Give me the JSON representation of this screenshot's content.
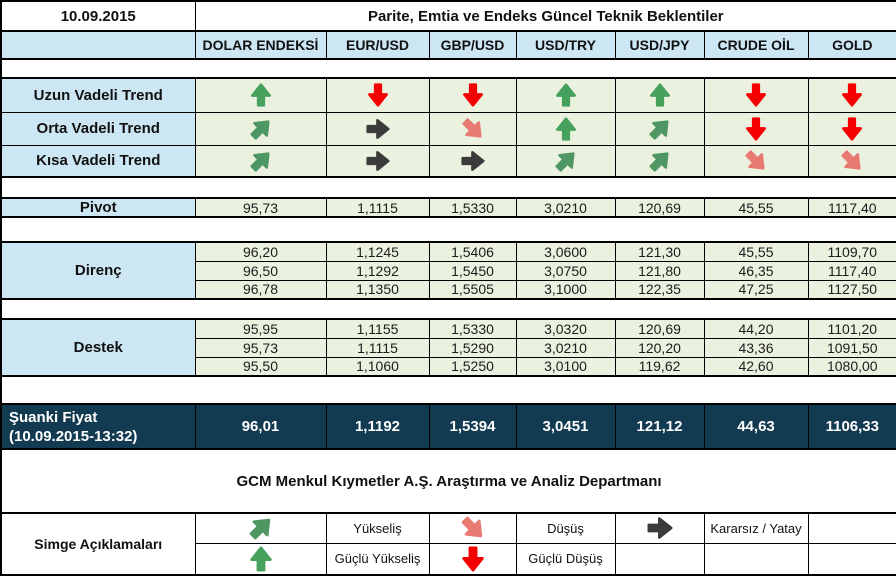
{
  "report": {
    "date": "10.09.2015",
    "title": "Parite, Emtia ve Endeks Güncel Teknik Beklentiler",
    "columns": [
      "DOLAR ENDEKSİ",
      "EUR/USD",
      "GBP/USD",
      "USD/TRY",
      "USD/JPY",
      "CRUDE OİL",
      "GOLD"
    ],
    "trend_rows": [
      {
        "label": "Uzun Vadeli Trend",
        "arrows": [
          "strong_up",
          "strong_down",
          "strong_down",
          "strong_up",
          "strong_up",
          "strong_down",
          "strong_down"
        ]
      },
      {
        "label": "Orta Vadeli Trend",
        "arrows": [
          "up",
          "neutral",
          "down",
          "strong_up",
          "up",
          "strong_down",
          "strong_down"
        ]
      },
      {
        "label": "Kısa Vadeli Trend",
        "arrows": [
          "up",
          "neutral",
          "neutral",
          "up",
          "up",
          "down",
          "down"
        ]
      }
    ],
    "pivot": {
      "label": "Pivot",
      "values": [
        "95,73",
        "1,1115",
        "1,5330",
        "3,0210",
        "120,69",
        "45,55",
        "1117,40"
      ]
    },
    "resistance": {
      "label": "Direnç",
      "rows": [
        [
          "96,20",
          "1,1245",
          "1,5406",
          "3,0600",
          "121,30",
          "45,55",
          "1109,70"
        ],
        [
          "96,50",
          "1,1292",
          "1,5450",
          "3,0750",
          "121,80",
          "46,35",
          "1117,40"
        ],
        [
          "96,78",
          "1,1350",
          "1,5505",
          "3,1000",
          "122,35",
          "47,25",
          "1127,50"
        ]
      ]
    },
    "support": {
      "label": "Destek",
      "rows": [
        [
          "95,95",
          "1,1155",
          "1,5330",
          "3,0320",
          "120,69",
          "44,20",
          "1101,20"
        ],
        [
          "95,73",
          "1,1115",
          "1,5290",
          "3,0210",
          "120,20",
          "43,36",
          "1091,50"
        ],
        [
          "95,50",
          "1,1060",
          "1,5250",
          "3,0100",
          "119,62",
          "42,60",
          "1080,00"
        ]
      ]
    },
    "current": {
      "label_line1": "Şuanki Fiyat",
      "label_line2": "(10.09.2015-13:32)",
      "values": [
        "96,01",
        "1,1192",
        "1,5394",
        "3,0451",
        "121,12",
        "44,63",
        "1106,33"
      ]
    },
    "footer": "GCM Menkul Kıymetler A.Ş. Araştırma ve Analiz Departmanı",
    "legend": {
      "label": "Simge Açıklamaları",
      "rows": [
        [
          {
            "arrow": "up"
          },
          {
            "text": "Yükseliş"
          },
          {
            "arrow": "down"
          },
          {
            "text": "Düşüş"
          },
          {
            "arrow": "neutral"
          },
          {
            "text": "Kararsız / Yatay"
          },
          {}
        ],
        [
          {
            "arrow": "strong_up"
          },
          {
            "text": "Güçlü Yükseliş"
          },
          {
            "arrow": "strong_down"
          },
          {
            "text": "Güçlü Düşüş"
          },
          {},
          {},
          {}
        ]
      ]
    },
    "colors": {
      "header_blue": "#cde6f4",
      "cell_green": "#eaf1de",
      "current_navy": "#123a50",
      "arrow_strong_up": "#46a15c",
      "arrow_up": "#4e9763",
      "arrow_neutral": "#3b3b3b",
      "arrow_down": "#e87a72",
      "arrow_strong_down": "#f50000"
    }
  }
}
